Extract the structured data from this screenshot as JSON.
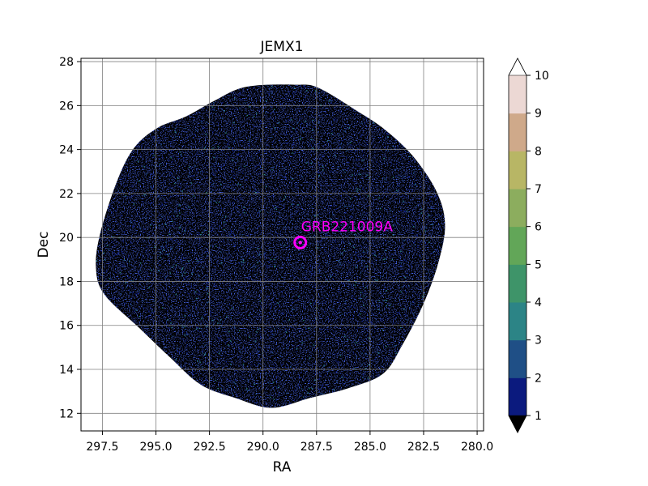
{
  "chart_data": {
    "type": "heatmap",
    "title": "JEMX1",
    "xlabel": "RA",
    "ylabel": "Dec",
    "xlim": [
      298.5,
      279.7
    ],
    "ylim": [
      11.2,
      28.15
    ],
    "x_reversed": true,
    "x_ticks": [
      297.5,
      295.0,
      292.5,
      290.0,
      287.5,
      285.0,
      282.5,
      280.0
    ],
    "x_tick_labels": [
      "297.5",
      "295.0",
      "292.5",
      "290.0",
      "287.5",
      "285.0",
      "282.5",
      "280.0"
    ],
    "y_ticks": [
      12,
      14,
      16,
      18,
      20,
      22,
      24,
      26,
      28
    ],
    "y_tick_labels": [
      "12",
      "14",
      "16",
      "18",
      "20",
      "22",
      "24",
      "26",
      "28"
    ],
    "grid": true,
    "source": {
      "label": "GRB221009A",
      "ra": 288.26,
      "dec": 19.77,
      "color": "#ff00ff"
    },
    "colorbar": {
      "ticks": [
        1,
        2,
        3,
        4,
        5,
        6,
        7,
        8,
        9,
        10
      ],
      "tick_labels": [
        "1",
        "2",
        "3",
        "4",
        "5",
        "6",
        "7",
        "8",
        "9",
        "10"
      ],
      "colors": [
        "#0b1a7e",
        "#1f4f86",
        "#2c8486",
        "#3e9469",
        "#62a658",
        "#8cad5e",
        "#b8b665",
        "#cfa98a",
        "#ecd8d4"
      ],
      "under_color": "#000000",
      "over_color": "#ffffff"
    },
    "image": {
      "background_color": "#000000",
      "speckle_colors": [
        "#0b1a7e",
        "#0b1a7e",
        "#0b1a7e",
        "#1f4f86",
        "#2c8486"
      ],
      "footprint_outline": [
        [
          290.8,
          26.85
        ],
        [
          288.5,
          26.95
        ],
        [
          287.4,
          26.8
        ],
        [
          285.6,
          25.75
        ],
        [
          284.3,
          24.9
        ],
        [
          283.0,
          23.7
        ],
        [
          281.9,
          22.1
        ],
        [
          281.5,
          20.6
        ],
        [
          281.8,
          18.9
        ],
        [
          282.5,
          17.0
        ],
        [
          283.5,
          15.1
        ],
        [
          284.4,
          13.8
        ],
        [
          286.0,
          13.15
        ],
        [
          287.8,
          12.7
        ],
        [
          289.6,
          12.25
        ],
        [
          291.3,
          12.7
        ],
        [
          292.9,
          13.3
        ],
        [
          294.4,
          14.6
        ],
        [
          295.8,
          15.9
        ],
        [
          297.4,
          17.4
        ],
        [
          297.8,
          18.6
        ],
        [
          297.6,
          20.2
        ],
        [
          296.8,
          22.6
        ],
        [
          296.0,
          24.1
        ],
        [
          294.9,
          25.0
        ],
        [
          293.6,
          25.5
        ],
        [
          292.3,
          26.2
        ]
      ]
    }
  }
}
